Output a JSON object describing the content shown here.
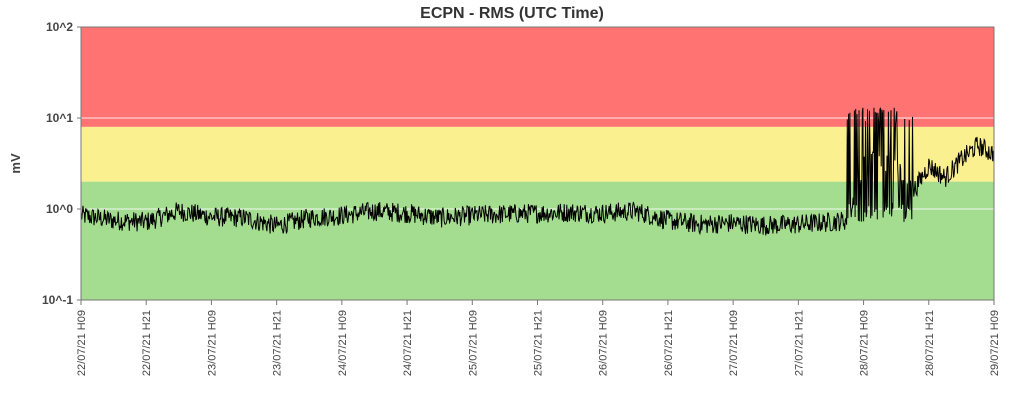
{
  "chart_data": {
    "type": "line",
    "title": "ECPN - RMS (UTC Time)",
    "ylabel": "mV",
    "xlabel": "",
    "yscale": "log",
    "ylim": [
      0.1,
      100
    ],
    "xlim": [
      "22/07/21 H09",
      "29/07/21 H09"
    ],
    "grid": "horizontal at decades",
    "y_ticks": [
      "10^2",
      "10^1",
      "10^0",
      "10^-1"
    ],
    "x_ticks": [
      "22/07/21 H09",
      "22/07/21 H21",
      "23/07/21 H09",
      "23/07/21 H21",
      "24/07/21 H09",
      "24/07/21 H21",
      "25/07/21 H09",
      "25/07/21 H21",
      "26/07/21 H09",
      "26/07/21 H21",
      "27/07/21 H09",
      "27/07/21 H21",
      "28/07/21 H09",
      "28/07/21 H21",
      "29/07/21 H09"
    ],
    "bands": [
      {
        "from": 0.1,
        "to": 2.0,
        "color": "#a4dc90"
      },
      {
        "from": 2.0,
        "to": 8.0,
        "color": "#fbf08f"
      },
      {
        "from": 8.0,
        "to": 100,
        "color": "#ff7373"
      }
    ],
    "line_color": "#000000",
    "series": [
      {
        "x": [
          "22/07/21 H09",
          "22/07/21 H15",
          "22/07/21 H21",
          "23/07/21 H03",
          "23/07/21 H09",
          "23/07/21 H15",
          "23/07/21 H21",
          "24/07/21 H03",
          "24/07/21 H09",
          "24/07/21 H15",
          "24/07/21 H21",
          "25/07/21 H03",
          "25/07/21 H09",
          "25/07/21 H15",
          "25/07/21 H21",
          "26/07/21 H03",
          "26/07/21 H09",
          "26/07/21 H15",
          "26/07/21 H21",
          "27/07/21 H03",
          "27/07/21 H09",
          "27/07/21 H15",
          "27/07/21 H21",
          "28/07/21 H03",
          "28/07/21 H06",
          "28/07/21 H09",
          "28/07/21 H12",
          "28/07/21 H15",
          "28/07/21 H18",
          "28/07/21 H21",
          "29/07/21 H00",
          "29/07/21 H03",
          "29/07/21 H06",
          "29/07/21 H09"
        ],
        "values": [
          0.85,
          0.75,
          0.72,
          0.95,
          0.82,
          0.8,
          0.65,
          0.8,
          0.85,
          0.95,
          0.9,
          0.8,
          0.85,
          0.88,
          0.9,
          0.92,
          0.9,
          0.95,
          0.75,
          0.68,
          0.7,
          0.66,
          0.68,
          0.72,
          0.75,
          3.0,
          3.5,
          3.0,
          1.5,
          3.0,
          2.2,
          3.5,
          5.0,
          4.0
        ]
      }
    ],
    "spike_region": {
      "x_from": "28/07/21 H06",
      "x_to": "28/07/21 H18",
      "low": 0.9,
      "high": 12
    }
  }
}
